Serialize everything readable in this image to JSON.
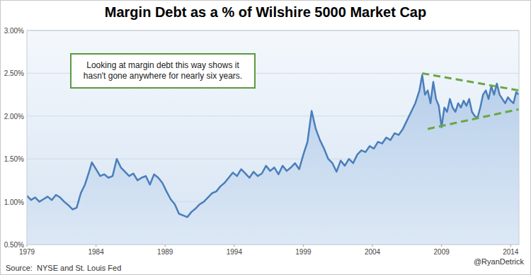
{
  "chart_data": {
    "type": "line",
    "title": "Margin Debt as a % of Wilshire 5000 Market Cap",
    "annotation": "Looking at margin debt this way shows it hasn't gone anywhere for nearly six years.",
    "source": "Source:  NYSE and St. Louis Fed",
    "credit": "@RyanDetrick",
    "x": [
      1979.0,
      1979.3,
      1979.6,
      1979.9,
      1980.2,
      1980.5,
      1980.8,
      1981.1,
      1981.4,
      1981.7,
      1982.0,
      1982.3,
      1982.6,
      1982.9,
      1983.2,
      1983.5,
      1983.7,
      1984.0,
      1984.3,
      1984.6,
      1984.9,
      1985.2,
      1985.5,
      1985.8,
      1986.1,
      1986.4,
      1986.7,
      1987.0,
      1987.3,
      1987.6,
      1987.9,
      1988.2,
      1988.5,
      1988.8,
      1989.1,
      1989.4,
      1989.7,
      1990.0,
      1990.3,
      1990.6,
      1990.9,
      1991.2,
      1991.5,
      1991.8,
      1992.1,
      1992.4,
      1992.7,
      1993.0,
      1993.3,
      1993.6,
      1993.9,
      1994.2,
      1994.5,
      1994.8,
      1995.1,
      1995.4,
      1995.7,
      1996.0,
      1996.3,
      1996.6,
      1996.9,
      1997.2,
      1997.5,
      1997.8,
      1998.1,
      1998.4,
      1998.7,
      1999.0,
      1999.3,
      1999.6,
      1999.9,
      2000.2,
      2000.5,
      2000.8,
      2001.1,
      2001.4,
      2001.7,
      2002.0,
      2002.3,
      2002.6,
      2002.9,
      2003.2,
      2003.5,
      2003.8,
      2004.1,
      2004.4,
      2004.7,
      2005.0,
      2005.3,
      2005.6,
      2005.9,
      2006.2,
      2006.5,
      2006.8,
      2007.1,
      2007.4,
      2007.6,
      2007.8,
      2008.0,
      2008.2,
      2008.4,
      2008.6,
      2008.8,
      2009.0,
      2009.2,
      2009.4,
      2009.6,
      2009.8,
      2010.0,
      2010.2,
      2010.4,
      2010.6,
      2010.8,
      2011.0,
      2011.2,
      2011.4,
      2011.6,
      2011.8,
      2012.0,
      2012.2,
      2012.4,
      2012.6,
      2012.8,
      2013.0,
      2013.2,
      2013.4,
      2013.6,
      2013.8,
      2014.0,
      2014.2,
      2014.4,
      2014.6
    ],
    "values": [
      1.07,
      1.02,
      1.05,
      1.0,
      1.03,
      1.06,
      1.02,
      1.08,
      1.05,
      1.0,
      0.96,
      0.91,
      0.93,
      1.1,
      1.2,
      1.35,
      1.46,
      1.38,
      1.3,
      1.32,
      1.28,
      1.3,
      1.5,
      1.4,
      1.35,
      1.3,
      1.33,
      1.25,
      1.28,
      1.3,
      1.2,
      1.32,
      1.28,
      1.22,
      1.12,
      1.03,
      0.97,
      0.86,
      0.84,
      0.82,
      0.88,
      0.92,
      0.97,
      1.0,
      1.05,
      1.1,
      1.12,
      1.18,
      1.22,
      1.28,
      1.34,
      1.3,
      1.38,
      1.33,
      1.28,
      1.35,
      1.3,
      1.33,
      1.42,
      1.36,
      1.4,
      1.32,
      1.42,
      1.36,
      1.4,
      1.45,
      1.38,
      1.55,
      1.7,
      2.06,
      1.85,
      1.72,
      1.62,
      1.5,
      1.45,
      1.35,
      1.48,
      1.42,
      1.5,
      1.45,
      1.55,
      1.6,
      1.58,
      1.65,
      1.62,
      1.7,
      1.68,
      1.75,
      1.72,
      1.8,
      1.78,
      1.85,
      1.95,
      2.05,
      2.15,
      2.3,
      2.48,
      2.25,
      2.3,
      2.15,
      2.4,
      2.2,
      2.12,
      1.87,
      2.1,
      2.05,
      2.2,
      2.1,
      2.05,
      2.15,
      2.1,
      2.18,
      2.12,
      2.2,
      2.05,
      2.0,
      1.98,
      2.1,
      2.25,
      2.3,
      2.2,
      2.35,
      2.25,
      2.38,
      2.25,
      2.2,
      2.15,
      2.22,
      2.18,
      2.15,
      2.28,
      2.25
    ],
    "color": "#4a7ebb",
    "trend_lines": [
      {
        "x": [
          2007.6,
          2014.6
        ],
        "values": [
          2.5,
          2.3
        ],
        "color": "#6aa843",
        "line_style": "dashed"
      },
      {
        "x": [
          2008.0,
          2014.6
        ],
        "values": [
          1.85,
          2.08
        ],
        "color": "#6aa843",
        "line_style": "dashed"
      }
    ],
    "xlim": [
      1979,
      2014.6
    ],
    "ylim": [
      0.5,
      3.0
    ],
    "xticks": [
      1979,
      1984,
      1989,
      1994,
      1999,
      2004,
      2009,
      2014
    ],
    "yticks": [
      {
        "value": 0.5,
        "label": "0.50%"
      },
      {
        "value": 1.0,
        "label": "1.00%"
      },
      {
        "value": 1.5,
        "label": "1.50%"
      },
      {
        "value": 2.0,
        "label": "2.00%"
      },
      {
        "value": 2.5,
        "label": "2.50%"
      },
      {
        "value": 3.0,
        "label": "3.00%"
      }
    ],
    "grid": true
  }
}
